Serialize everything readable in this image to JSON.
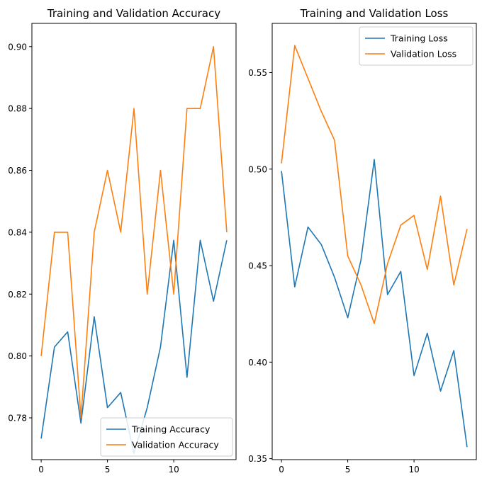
{
  "colors": {
    "blue": "#1f77b4",
    "orange": "#ff7f0e"
  },
  "chart_data": [
    {
      "type": "line",
      "title": "Training and Validation Accuracy",
      "xlabel": "",
      "ylabel": "",
      "xlim": [
        -0.7,
        14.7
      ],
      "ylim": [
        0.7665,
        0.9075
      ],
      "xticks": [
        0,
        5,
        10
      ],
      "yticks": [
        0.78,
        0.8,
        0.82,
        0.84,
        0.86,
        0.88,
        0.9
      ],
      "ytick_labels": [
        "0.78",
        "0.80",
        "0.82",
        "0.84",
        "0.86",
        "0.88",
        "0.90"
      ],
      "legend_position": "lower-right",
      "grid": false,
      "x": [
        0,
        1,
        2,
        3,
        4,
        5,
        6,
        7,
        8,
        9,
        10,
        11,
        12,
        13,
        14
      ],
      "series": [
        {
          "name": "Training Accuracy",
          "color": "#1f77b4",
          "values": [
            0.7733,
            0.8029,
            0.8078,
            0.7783,
            0.8127,
            0.7833,
            0.7882,
            0.7685,
            0.7833,
            0.8029,
            0.8374,
            0.7931,
            0.8374,
            0.8177,
            0.8374
          ]
        },
        {
          "name": "Validation Accuracy",
          "color": "#ff7f0e",
          "values": [
            0.8,
            0.84,
            0.84,
            0.78,
            0.84,
            0.86,
            0.84,
            0.88,
            0.82,
            0.86,
            0.82,
            0.88,
            0.88,
            0.9,
            0.84
          ]
        }
      ]
    },
    {
      "type": "line",
      "title": "Training and Validation Loss",
      "xlabel": "",
      "ylabel": "",
      "xlim": [
        -0.7,
        14.7
      ],
      "ylim": [
        0.3495,
        0.5755
      ],
      "xticks": [
        0,
        5,
        10
      ],
      "yticks": [
        0.35,
        0.4,
        0.45,
        0.5,
        0.55
      ],
      "ytick_labels": [
        "0.35",
        "0.40",
        "0.45",
        "0.50",
        "0.55"
      ],
      "legend_position": "upper-right",
      "grid": false,
      "x": [
        0,
        1,
        2,
        3,
        4,
        5,
        6,
        7,
        8,
        9,
        10,
        11,
        12,
        13,
        14
      ],
      "series": [
        {
          "name": "Training Loss",
          "color": "#1f77b4",
          "values": [
            0.499,
            0.439,
            0.47,
            0.461,
            0.444,
            0.423,
            0.453,
            0.505,
            0.435,
            0.447,
            0.393,
            0.415,
            0.385,
            0.406,
            0.356
          ]
        },
        {
          "name": "Validation Loss",
          "color": "#ff7f0e",
          "values": [
            0.503,
            0.564,
            0.547,
            0.53,
            0.515,
            0.455,
            0.44,
            0.42,
            0.451,
            0.471,
            0.476,
            0.448,
            0.486,
            0.44,
            0.469
          ]
        }
      ]
    }
  ]
}
